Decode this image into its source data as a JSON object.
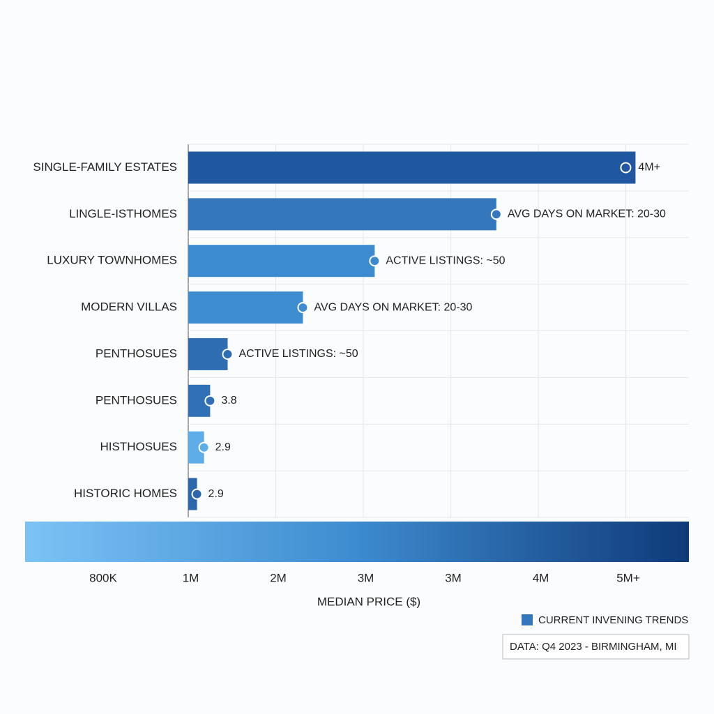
{
  "chart_data": {
    "type": "bar",
    "orientation": "horizontal",
    "categories": [
      "SINGLE-FAMILY ESTATES",
      "LINGLE-ISTHOMES",
      "LUXURY TOWNHOMES",
      "MODERN VILLAS",
      "PENTHOSUES",
      "PENTHOSUES",
      "HISTHOSUES",
      "HISTORIC HOMES"
    ],
    "values": [
      6.11,
      4.52,
      3.13,
      2.31,
      1.45,
      1.25,
      1.18,
      1.1
    ],
    "colors": [
      "#1f57a0",
      "#3577bd",
      "#3d8bcf",
      "#3e8dd0",
      "#2f6db3",
      "#3070b6",
      "#5eace8",
      "#2d68ad"
    ],
    "annotations": [
      "4M+",
      "AVG DAYS ON MARKET: 20-30",
      "ACTIVE LISTINGS: ~50",
      "AVG DAYS ON MARKET: 20-30",
      "ACTIVE LISTINGS: ~50",
      "3.8",
      "2.9",
      "2.9"
    ],
    "xlim": [
      1,
      6.72
    ],
    "xgrid": [
      2,
      3,
      4,
      5,
      6
    ],
    "grid": true,
    "colorbar": {
      "colors": [
        "#7cc3f5",
        "#3d8bcf",
        "#0f3a78"
      ],
      "labels": [
        "800K",
        "1M",
        "2M",
        "3M",
        "3M",
        "4M",
        "5M+"
      ]
    },
    "xlabel": "MEDIAN PRICE ($)",
    "legend": {
      "name": "CURRENT INVENING TRENDS",
      "color": "#3577bd"
    },
    "source": "DATA: Q4 2023 - BIRMINGHAM, MI"
  }
}
